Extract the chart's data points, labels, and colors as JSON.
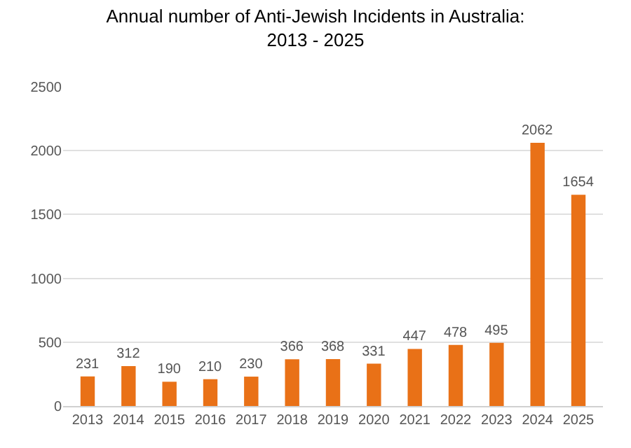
{
  "chart_data": {
    "type": "bar",
    "title": "Annual number of Anti-Jewish Incidents in Australia:\n2013 - 2025",
    "categories": [
      "2013",
      "2014",
      "2015",
      "2016",
      "2017",
      "2018",
      "2019",
      "2020",
      "2021",
      "2022",
      "2023",
      "2024",
      "2025"
    ],
    "values": [
      231,
      312,
      190,
      210,
      230,
      366,
      368,
      331,
      447,
      478,
      495,
      2062,
      1654
    ],
    "color": "#e97117",
    "ylim": [
      0,
      2500
    ],
    "yticks": [
      0,
      500,
      1000,
      1500,
      2000,
      2500
    ],
    "grid": "y",
    "data_labels": true
  }
}
